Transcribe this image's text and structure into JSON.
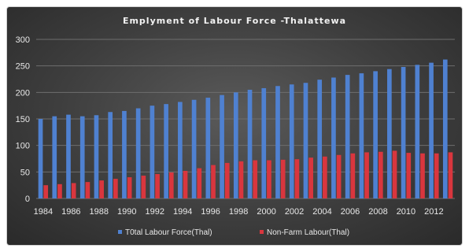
{
  "chart_data": {
    "type": "bar",
    "title": "Emplyment  of Labour Force -Thalattewa",
    "xlabel": "",
    "ylabel": "",
    "ylim": [
      0,
      300
    ],
    "yticks": [
      "0",
      "50",
      "100",
      "150",
      "200",
      "250",
      "300"
    ],
    "grid": true,
    "legend_position": "bottom",
    "x": [
      1984,
      1985,
      1986,
      1987,
      1988,
      1989,
      1990,
      1991,
      1992,
      1993,
      1994,
      1995,
      1996,
      1997,
      1998,
      1999,
      2000,
      2001,
      2002,
      2003,
      2004,
      2005,
      2006,
      2007,
      2008,
      2009,
      2010,
      2011,
      2012,
      2013
    ],
    "xtick_labels": [
      "1984",
      "1986",
      "1988",
      "1990",
      "1992",
      "1994",
      "1996",
      "1998",
      "2000",
      "2002",
      "2004",
      "2006",
      "2008",
      "2010",
      "2012"
    ],
    "series": [
      {
        "name": "T0tal Labour Force(Thal)",
        "color": "#4f81d1",
        "values": [
          150,
          155,
          158,
          155,
          157,
          163,
          165,
          170,
          175,
          178,
          182,
          186,
          190,
          195,
          200,
          205,
          208,
          212,
          215,
          218,
          224,
          228,
          233,
          236,
          240,
          244,
          248,
          252,
          256,
          262
        ]
      },
      {
        "name": "Non-Farm Labour(Thal)",
        "color": "#d9363e",
        "values": [
          25,
          27,
          29,
          31,
          34,
          37,
          40,
          43,
          46,
          49,
          52,
          57,
          63,
          67,
          70,
          72,
          72,
          73,
          74,
          77,
          79,
          82,
          85,
          87,
          88,
          90,
          86,
          85,
          85,
          87
        ]
      }
    ]
  }
}
